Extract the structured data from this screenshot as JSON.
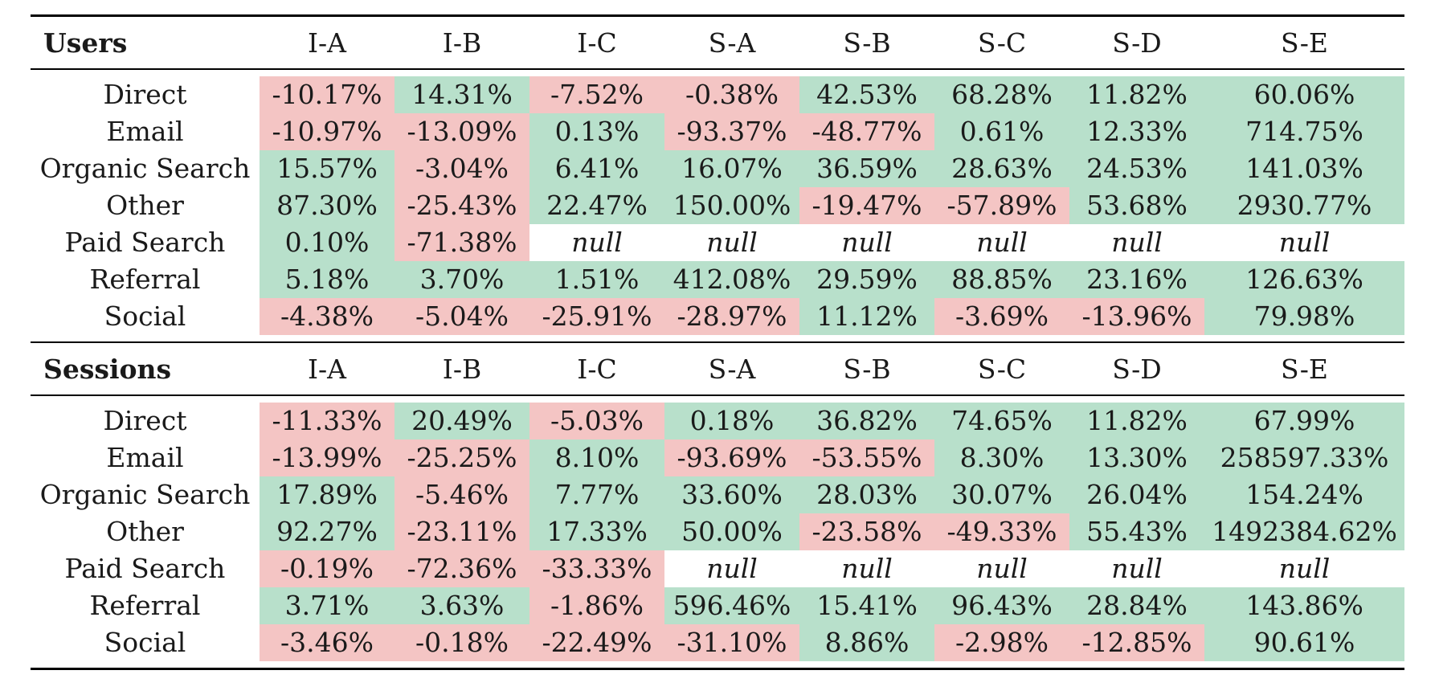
{
  "colors": {
    "positive": "#b8e0cb",
    "negative": "#f4c5c4",
    "null": "#ffffff"
  },
  "columns": [
    "I-A",
    "I-B",
    "I-C",
    "S-A",
    "S-B",
    "S-C",
    "S-D",
    "S-E"
  ],
  "sections": [
    {
      "title": "Users",
      "rows": [
        {
          "label": "Direct",
          "values": [
            "-10.17%",
            "14.31%",
            "-7.52%",
            "-0.38%",
            "42.53%",
            "68.28%",
            "11.82%",
            "60.06%"
          ]
        },
        {
          "label": "Email",
          "values": [
            "-10.97%",
            "-13.09%",
            "0.13%",
            "-93.37%",
            "-48.77%",
            "0.61%",
            "12.33%",
            "714.75%"
          ]
        },
        {
          "label": "Organic Search",
          "values": [
            "15.57%",
            "-3.04%",
            "6.41%",
            "16.07%",
            "36.59%",
            "28.63%",
            "24.53%",
            "141.03%"
          ]
        },
        {
          "label": "Other",
          "values": [
            "87.30%",
            "-25.43%",
            "22.47%",
            "150.00%",
            "-19.47%",
            "-57.89%",
            "53.68%",
            "2930.77%"
          ]
        },
        {
          "label": "Paid Search",
          "values": [
            "0.10%",
            "-71.38%",
            "null",
            "null",
            "null",
            "null",
            "null",
            "null"
          ]
        },
        {
          "label": "Referral",
          "values": [
            "5.18%",
            "3.70%",
            "1.51%",
            "412.08%",
            "29.59%",
            "88.85%",
            "23.16%",
            "126.63%"
          ]
        },
        {
          "label": "Social",
          "values": [
            "-4.38%",
            "-5.04%",
            "-25.91%",
            "-28.97%",
            "11.12%",
            "-3.69%",
            "-13.96%",
            "79.98%"
          ]
        }
      ]
    },
    {
      "title": "Sessions",
      "rows": [
        {
          "label": "Direct",
          "values": [
            "-11.33%",
            "20.49%",
            "-5.03%",
            "0.18%",
            "36.82%",
            "74.65%",
            "11.82%",
            "67.99%"
          ]
        },
        {
          "label": "Email",
          "values": [
            "-13.99%",
            "-25.25%",
            "8.10%",
            "-93.69%",
            "-53.55%",
            "8.30%",
            "13.30%",
            "258597.33%"
          ]
        },
        {
          "label": "Organic Search",
          "values": [
            "17.89%",
            "-5.46%",
            "7.77%",
            "33.60%",
            "28.03%",
            "30.07%",
            "26.04%",
            "154.24%"
          ]
        },
        {
          "label": "Other",
          "values": [
            "92.27%",
            "-23.11%",
            "17.33%",
            "50.00%",
            "-23.58%",
            "-49.33%",
            "55.43%",
            "1492384.62%"
          ]
        },
        {
          "label": "Paid Search",
          "values": [
            "-0.19%",
            "-72.36%",
            "-33.33%",
            "null",
            "null",
            "null",
            "null",
            "null"
          ]
        },
        {
          "label": "Referral",
          "values": [
            "3.71%",
            "3.63%",
            "-1.86%",
            "596.46%",
            "15.41%",
            "96.43%",
            "28.84%",
            "143.86%"
          ]
        },
        {
          "label": "Social",
          "values": [
            "-3.46%",
            "-0.18%",
            "-22.49%",
            "-31.10%",
            "8.86%",
            "-2.98%",
            "-12.85%",
            "90.61%"
          ]
        }
      ]
    }
  ]
}
